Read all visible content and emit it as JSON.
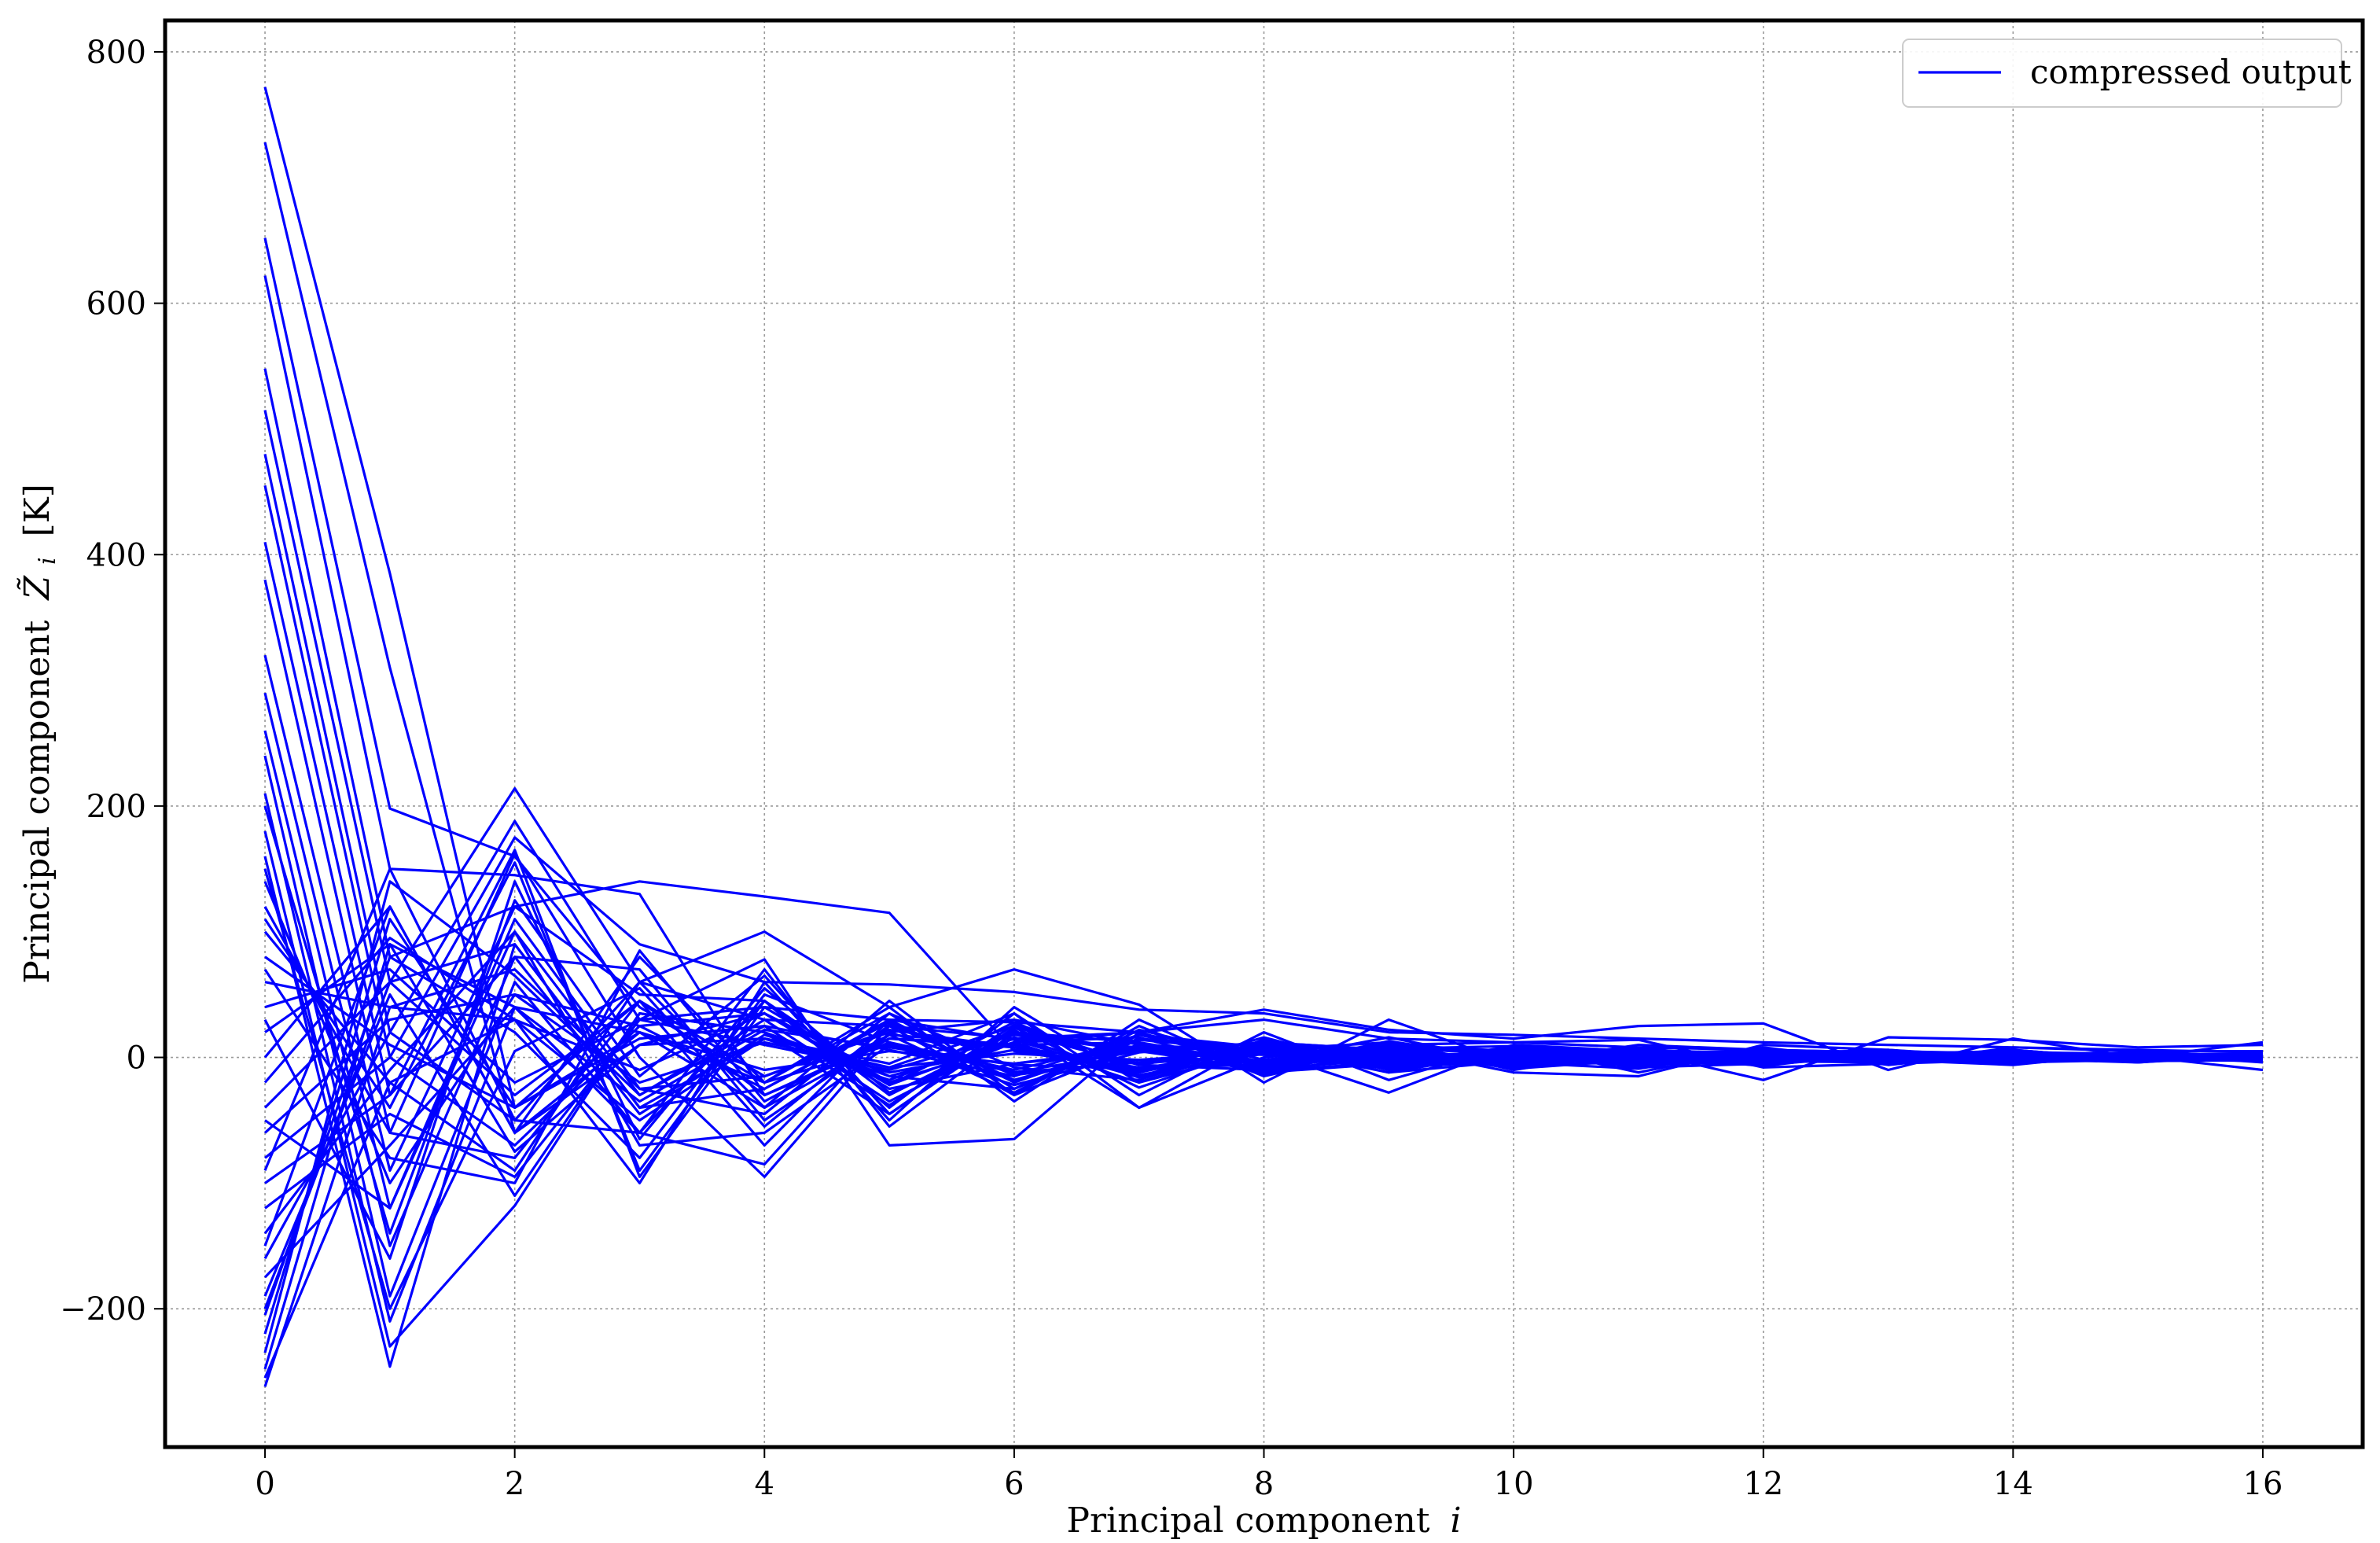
{
  "chart_data": {
    "type": "line",
    "title": "",
    "xlabel": "Principal component",
    "xlabel_var": "i",
    "ylabel": "Principal component",
    "ylabel_var": "Z̃",
    "ylabel_sub": "i",
    "ylabel_unit": "[K]",
    "xlim": [
      -0.8,
      16.8
    ],
    "ylim": [
      -310,
      825
    ],
    "xticks": [
      0,
      2,
      4,
      6,
      8,
      10,
      12,
      14,
      16
    ],
    "xtick_labels": [
      "0",
      "2",
      "4",
      "6",
      "8",
      "10",
      "12",
      "14",
      "16"
    ],
    "yticks": [
      -200,
      0,
      200,
      400,
      600,
      800
    ],
    "ytick_labels": [
      "−200",
      "0",
      "200",
      "400",
      "600",
      "800"
    ],
    "grid": true,
    "legend": {
      "placement": "top-right",
      "entries": [
        "compressed output"
      ]
    },
    "series_color": "#0000ff",
    "x": [
      0,
      1,
      2,
      3,
      4,
      5,
      6,
      7,
      8,
      9,
      10,
      11,
      12,
      13,
      14,
      15,
      16
    ],
    "series": [
      {
        "name": "compressed output",
        "values": [
          772,
          385,
          -40,
          20,
          -10,
          5,
          -5,
          8,
          -3,
          2,
          0,
          3,
          -2,
          1,
          0,
          1,
          2
        ]
      },
      {
        "values": [
          728,
          310,
          -60,
          10,
          15,
          -8,
          3,
          -2,
          5,
          0,
          2,
          -1,
          1,
          0,
          3,
          0,
          1
        ]
      },
      {
        "values": [
          652,
          198,
          160,
          40,
          -20,
          10,
          -12,
          5,
          2,
          -3,
          1,
          0,
          -2,
          2,
          1,
          -1,
          0
        ]
      },
      {
        "values": [
          622,
          150,
          145,
          130,
          -30,
          15,
          8,
          -5,
          3,
          4,
          -2,
          1,
          0,
          -1,
          2,
          1,
          -2
        ]
      },
      {
        "values": [
          548,
          80,
          120,
          140,
          128,
          115,
          5,
          -10,
          6,
          -2,
          3,
          2,
          -1,
          0,
          1,
          -2,
          1
        ]
      },
      {
        "values": [
          515,
          60,
          214,
          60,
          100,
          40,
          70,
          42,
          -20,
          30,
          -5,
          10,
          6,
          4,
          -3,
          2,
          0
        ]
      },
      {
        "values": [
          480,
          20,
          188,
          30,
          78,
          -70,
          -65,
          20,
          38,
          22,
          15,
          25,
          27,
          -10,
          15,
          0,
          12
        ]
      },
      {
        "values": [
          455,
          0,
          175,
          90,
          60,
          58,
          52,
          38,
          35,
          20,
          18,
          15,
          12,
          10,
          8,
          5,
          5
        ]
      },
      {
        "values": [
          410,
          -30,
          165,
          -95,
          40,
          30,
          28,
          20,
          30,
          15,
          12,
          8,
          6,
          4,
          2,
          1,
          -10
        ]
      },
      {
        "values": [
          380,
          -60,
          162,
          0,
          -95,
          20,
          30,
          10,
          5,
          -28,
          10,
          5,
          -18,
          16,
          14,
          8,
          10
        ]
      },
      {
        "values": [
          320,
          -90,
          120,
          50,
          45,
          -40,
          35,
          -40,
          0,
          10,
          12,
          14,
          -8,
          -5,
          8,
          6,
          4
        ]
      },
      {
        "values": [
          290,
          -120,
          100,
          -30,
          30,
          25,
          15,
          20,
          -8,
          8,
          -12,
          -15,
          10,
          6,
          -4,
          2,
          3
        ]
      },
      {
        "values": [
          260,
          -150,
          80,
          70,
          -50,
          18,
          10,
          -15,
          12,
          -10,
          6,
          4,
          -6,
          3,
          5,
          -3,
          -2
        ]
      },
      {
        "values": [
          240,
          -190,
          60,
          -60,
          45,
          -30,
          20,
          12,
          -10,
          5,
          -4,
          6,
          3,
          -2,
          -6,
          4,
          1
        ]
      },
      {
        "values": [
          210,
          -210,
          40,
          20,
          -20,
          35,
          -25,
          18,
          8,
          -12,
          5,
          -6,
          2,
          5,
          3,
          -1,
          -3
        ]
      },
      {
        "values": [
          180,
          -230,
          -118,
          35,
          20,
          -15,
          12,
          -20,
          6,
          12,
          -8,
          3,
          -4,
          2,
          -2,
          3,
          0
        ]
      },
      {
        "values": [
          160,
          -246,
          90,
          -40,
          -25,
          28,
          -18,
          10,
          -6,
          7,
          9,
          -5,
          4,
          -3,
          6,
          -2,
          2
        ]
      },
      {
        "values": [
          140,
          -100,
          50,
          25,
          35,
          -22,
          15,
          8,
          -12,
          -5,
          4,
          7,
          -3,
          4,
          -5,
          1,
          -1
        ]
      },
      {
        "values": [
          120,
          -60,
          -80,
          45,
          -30,
          12,
          -10,
          14,
          5,
          -8,
          -3,
          4,
          5,
          -2,
          3,
          -4,
          2
        ]
      },
      {
        "values": [
          100,
          -20,
          30,
          -50,
          15,
          -18,
          20,
          -6,
          10,
          4,
          -7,
          -2,
          3,
          6,
          -1,
          2,
          -3
        ]
      },
      {
        "values": [
          80,
          10,
          -40,
          15,
          25,
          6,
          -15,
          18,
          -4,
          9,
          3,
          -8,
          -5,
          1,
          4,
          -2,
          1
        ]
      },
      {
        "values": [
          60,
          40,
          70,
          -25,
          -15,
          22,
          8,
          -12,
          9,
          -3,
          6,
          5,
          -2,
          -4,
          2,
          3,
          -1
        ]
      },
      {
        "values": [
          40,
          70,
          -20,
          30,
          10,
          -10,
          18,
          5,
          -9,
          6,
          -5,
          2,
          4,
          -3,
          -2,
          1,
          2
        ]
      },
      {
        "values": [
          20,
          90,
          40,
          -35,
          22,
          8,
          -6,
          -9,
          7,
          -6,
          2,
          -4,
          -1,
          3,
          5,
          -2,
          0
        ]
      },
      {
        "values": [
          0,
          120,
          -60,
          20,
          -40,
          15,
          10,
          12,
          -5,
          3,
          -2,
          6,
          -3,
          2,
          -4,
          3,
          1
        ]
      },
      {
        "values": [
          -20,
          95,
          30,
          -10,
          35,
          -25,
          -5,
          6,
          8,
          -7,
          4,
          1,
          5,
          -1,
          2,
          -3,
          2
        ]
      },
      {
        "values": [
          -40,
          60,
          -30,
          45,
          -15,
          20,
          -12,
          -4,
          10,
          5,
          -6,
          3,
          -2,
          4,
          1,
          0,
          -2
        ]
      },
      {
        "values": [
          -60,
          30,
          50,
          -20,
          12,
          -8,
          25,
          -10,
          -3,
          8,
          2,
          -5,
          3,
          -2,
          -3,
          2,
          1
        ]
      },
      {
        "values": [
          -80,
          0,
          -70,
          25,
          -25,
          30,
          -20,
          15,
          6,
          -4,
          -3,
          4,
          -4,
          5,
          2,
          -1,
          -1
        ]
      },
      {
        "values": [
          -100,
          -30,
          80,
          -45,
          18,
          -12,
          6,
          -8,
          -6,
          10,
          5,
          -3,
          2,
          -3,
          3,
          2,
          0
        ]
      },
      {
        "values": [
          -120,
          -45,
          -95,
          30,
          40,
          -20,
          12,
          20,
          -9,
          -2,
          3,
          5,
          -5,
          1,
          -2,
          -2,
          3
        ]
      },
      {
        "values": [
          -140,
          -10,
          100,
          -70,
          -60,
          10,
          -22,
          4,
          12,
          6,
          -8,
          -1,
          4,
          2,
          4,
          -3,
          -2
        ]
      },
      {
        "values": [
          -160,
          20,
          -50,
          60,
          30,
          -35,
          16,
          -14,
          3,
          -9,
          7,
          2,
          -3,
          -4,
          1,
          4,
          1
        ]
      },
      {
        "values": [
          -175,
          -70,
          40,
          -60,
          -85,
          25,
          -30,
          10,
          -7,
          4,
          -5,
          6,
          1,
          3,
          -3,
          -1,
          2
        ]
      },
      {
        "values": [
          -190,
          50,
          -110,
          35,
          20,
          -45,
          22,
          -40,
          15,
          -8,
          4,
          -3,
          -6,
          2,
          5,
          1,
          -2
        ]
      },
      {
        "values": [
          -205,
          80,
          20,
          -80,
          50,
          12,
          -18,
          8,
          -12,
          10,
          -6,
          -4,
          3,
          -5,
          -2,
          3,
          0
        ]
      },
      {
        "values": [
          -220,
          110,
          -40,
          45,
          -70,
          30,
          14,
          -16,
          5,
          3,
          2,
          -7,
          2,
          4,
          -4,
          -2,
          1
        ]
      },
      {
        "values": [
          -235,
          140,
          65,
          -30,
          25,
          -38,
          26,
          -6,
          -10,
          -5,
          8,
          3,
          -4,
          -1,
          3,
          2,
          -1
        ]
      },
      {
        "values": [
          -248,
          90,
          -75,
          10,
          35,
          -15,
          -25,
          14,
          9,
          -12,
          -3,
          5,
          1,
          -3,
          2,
          -3,
          2
        ]
      },
      {
        "values": [
          -262,
          40,
          30,
          -100,
          60,
          -50,
          40,
          -20,
          12,
          6,
          -9,
          -2,
          3,
          2,
          -1,
          1,
          0
        ]
      },
      {
        "values": [
          -255,
          -20,
          -90,
          60,
          -40,
          45,
          -30,
          25,
          -15,
          7,
          4,
          -6,
          -2,
          5,
          1,
          -2,
          -1
        ]
      },
      {
        "values": [
          -200,
          60,
          90,
          -40,
          15,
          -5,
          35,
          -30,
          20,
          -18,
          10,
          -12,
          8,
          -4,
          6,
          -2,
          3
        ]
      },
      {
        "values": [
          -150,
          120,
          -60,
          80,
          -20,
          40,
          -35,
          30,
          -14,
          12,
          -10,
          6,
          -6,
          3,
          -3,
          1,
          -2
        ]
      },
      {
        "values": [
          -90,
          150,
          -50,
          -60,
          70,
          -55,
          20,
          6,
          -3,
          16,
          -4,
          -9,
          7,
          -6,
          4,
          3,
          -4
        ]
      },
      {
        "values": [
          -50,
          -120,
          110,
          -25,
          -45,
          35,
          -8,
          -18,
          14,
          -6,
          9,
          3,
          -7,
          5,
          -1,
          -4,
          3
        ]
      },
      {
        "values": [
          30,
          -160,
          140,
          -65,
          55,
          -28,
          12,
          16,
          -11,
          -4,
          6,
          -5,
          4,
          -2,
          2,
          0,
          -1
        ]
      },
      {
        "values": [
          70,
          -80,
          -100,
          85,
          -35,
          18,
          -28,
          22,
          -2,
          9,
          -7,
          8,
          -3,
          -1,
          -2,
          2,
          1
        ]
      },
      {
        "values": [
          110,
          -40,
          155,
          -90,
          45,
          -22,
          28,
          -12,
          16,
          -10,
          3,
          -4,
          6,
          2,
          -5,
          1,
          2
        ]
      },
      {
        "values": [
          150,
          -200,
          5,
          55,
          -55,
          26,
          -14,
          -2,
          -8,
          13,
          -2,
          7,
          -5,
          3,
          4,
          -3,
          -2
        ]
      },
      {
        "values": [
          200,
          -140,
          125,
          -15,
          65,
          -45,
          24,
          -24,
          10,
          -1,
          5,
          -6,
          -2,
          6,
          0,
          2,
          1
        ]
      }
    ]
  }
}
